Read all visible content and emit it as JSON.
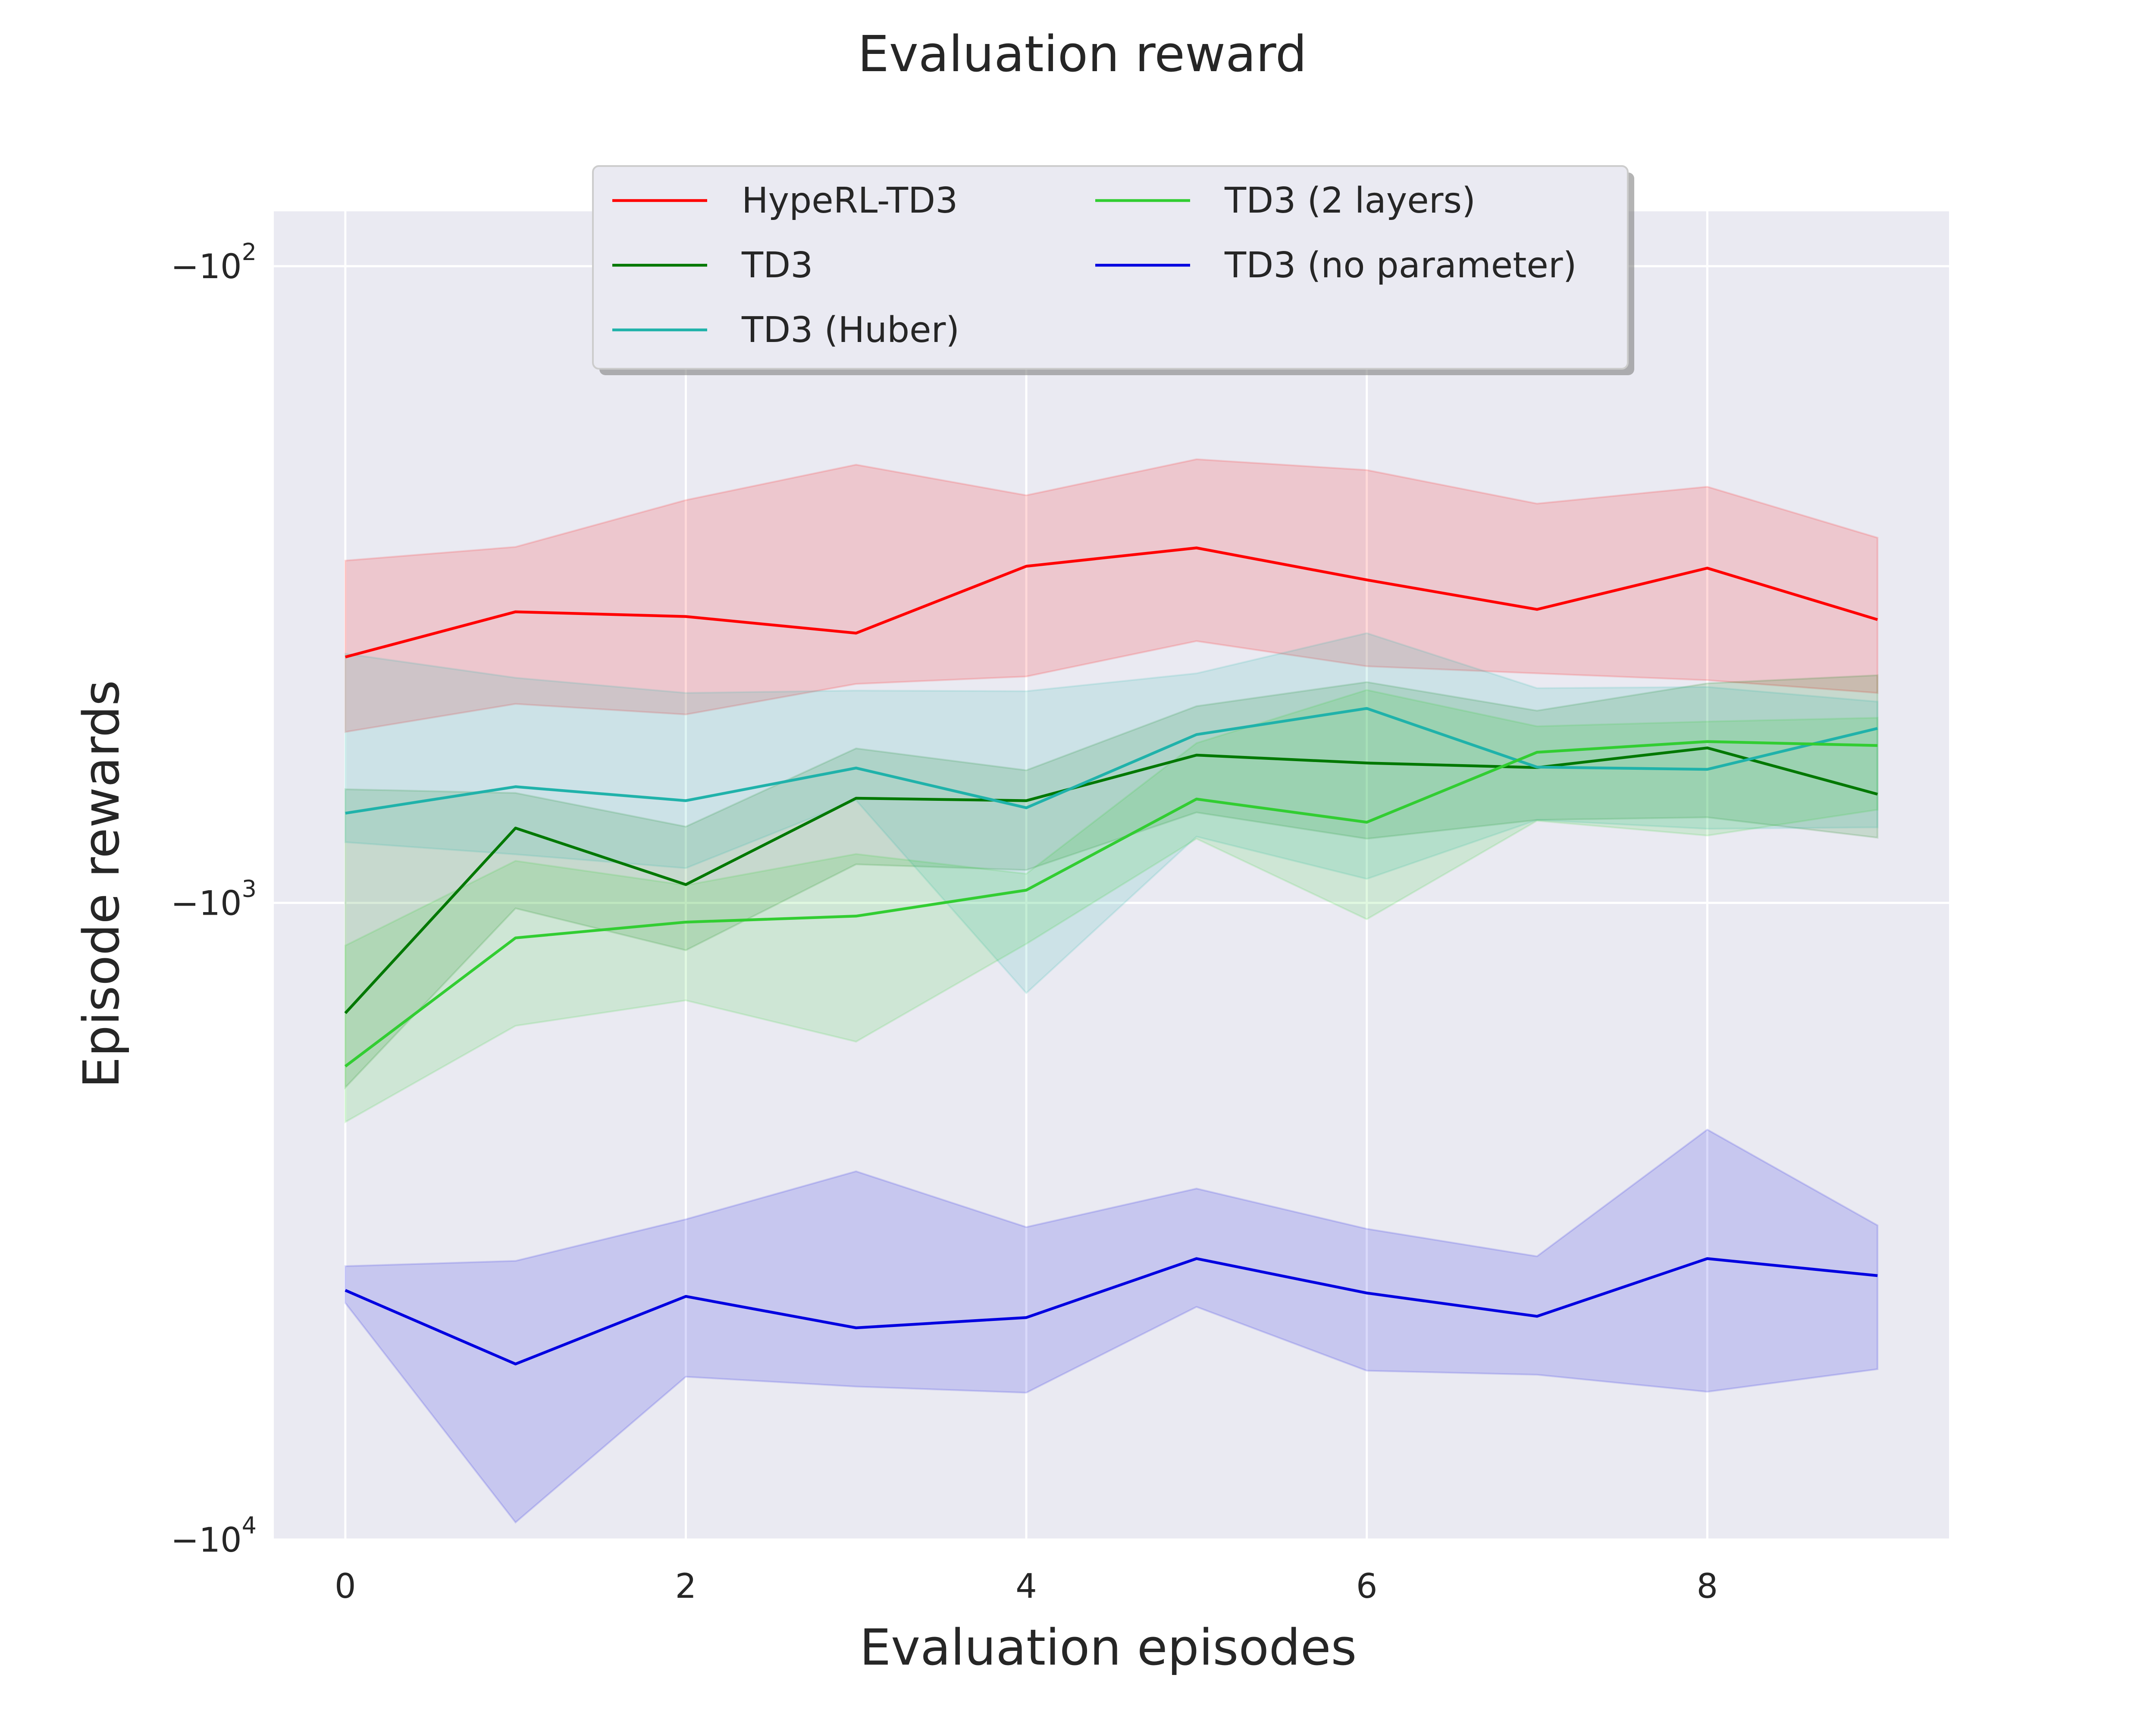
{
  "chart_data": {
    "type": "line",
    "title": "Evaluation reward",
    "xlabel": "Evaluation episodes",
    "ylabel": "Episode rewards",
    "yscale": "symlog-negative",
    "x": [
      0,
      1,
      2,
      3,
      4,
      5,
      6,
      7,
      8,
      9
    ],
    "xlim": [
      -0.42,
      9.42
    ],
    "xticks": [
      0,
      2,
      4,
      6,
      8
    ],
    "ylim": [
      -10000,
      -82
    ],
    "yticks": [
      {
        "value": -100,
        "base": "−10",
        "exp": "2"
      },
      {
        "value": -1000,
        "base": "−10",
        "exp": "3"
      },
      {
        "value": -10000,
        "base": "−10",
        "exp": "4"
      }
    ],
    "grid": true,
    "legend": {
      "position": "top-center",
      "columns": 2
    },
    "series": [
      {
        "name": "HypeRL-TD3",
        "color": "#ff0000",
        "mean": [
          -411,
          -349,
          -355,
          -377,
          -296,
          -277,
          -311,
          -346,
          -298,
          -359
        ],
        "lower": [
          -539,
          -487,
          -506,
          -453,
          -441,
          -388,
          -425,
          -436,
          -447,
          -468
        ],
        "upper": [
          -290,
          -276,
          -233,
          -205,
          -229,
          -201,
          -209,
          -236,
          -222,
          -267
        ]
      },
      {
        "name": "TD3",
        "color": "#007800",
        "mean": [
          -1490,
          -763,
          -936,
          -685,
          -691,
          -586,
          -603,
          -613,
          -571,
          -675
        ],
        "lower": [
          -1950,
          -1020,
          -1187,
          -870,
          -888,
          -721,
          -793,
          -741,
          -734,
          -790
        ],
        "upper": [
          -663,
          -672,
          -759,
          -572,
          -619,
          -491,
          -450,
          -499,
          -452,
          -439
        ]
      },
      {
        "name": "TD3 (Huber)",
        "color": "#20b2aa",
        "mean": [
          -723,
          -657,
          -691,
          -614,
          -709,
          -544,
          -495,
          -612,
          -617,
          -532
        ],
        "lower": [
          -803,
          -839,
          -882,
          -690,
          -1386,
          -787,
          -917,
          -741,
          -765,
          -761
        ],
        "upper": [
          -406,
          -443,
          -468,
          -464,
          -465,
          -436,
          -377,
          -460,
          -458,
          -483
        ]
      },
      {
        "name": "TD3 (2 layers)",
        "color": "#32cd32",
        "mean": [
          -1806,
          -1135,
          -1072,
          -1049,
          -955,
          -687,
          -747,
          -580,
          -558,
          -566
        ],
        "lower": [
          -2209,
          -1560,
          -1423,
          -1652,
          -1160,
          -793,
          -1061,
          -743,
          -784,
          -714
        ],
        "upper": [
          -1167,
          -859,
          -938,
          -838,
          -900,
          -561,
          -463,
          -528,
          -519,
          -512
        ]
      },
      {
        "name": "TD3 (no parameter)",
        "color": "#0000e0",
        "mean": [
          -4060,
          -5300,
          -4150,
          -4650,
          -4480,
          -3620,
          -4100,
          -4460,
          -3620,
          -3850
        ],
        "lower": [
          -4250,
          -9400,
          -5550,
          -5750,
          -5880,
          -4310,
          -5430,
          -5510,
          -5860,
          -5400
        ],
        "upper": [
          -3720,
          -3650,
          -3140,
          -2640,
          -3230,
          -2810,
          -3250,
          -3590,
          -2270,
          -3210
        ]
      }
    ]
  }
}
